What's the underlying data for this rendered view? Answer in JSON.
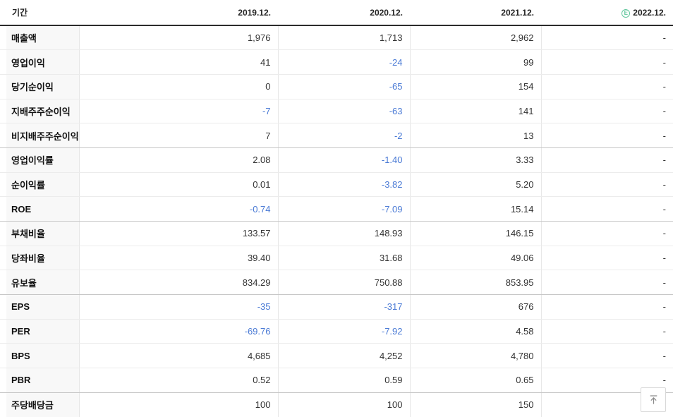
{
  "table": {
    "period_label": "기간",
    "columns": [
      "2019.12.",
      "2020.12.",
      "2021.12.",
      "2022.12."
    ],
    "estimate_badge": "E",
    "rows": [
      {
        "label": "매출액",
        "group_end": false,
        "cells": [
          {
            "t": "1,976",
            "neg": false
          },
          {
            "t": "1,713",
            "neg": false
          },
          {
            "t": "2,962",
            "neg": false
          },
          {
            "t": "-",
            "neg": false
          }
        ]
      },
      {
        "label": "영업이익",
        "group_end": false,
        "cells": [
          {
            "t": "41",
            "neg": false
          },
          {
            "t": "-24",
            "neg": true
          },
          {
            "t": "99",
            "neg": false
          },
          {
            "t": "-",
            "neg": false
          }
        ]
      },
      {
        "label": "당기순이익",
        "group_end": false,
        "cells": [
          {
            "t": "0",
            "neg": false
          },
          {
            "t": "-65",
            "neg": true
          },
          {
            "t": "154",
            "neg": false
          },
          {
            "t": "-",
            "neg": false
          }
        ]
      },
      {
        "label": "지배주주순이익",
        "group_end": false,
        "cells": [
          {
            "t": "-7",
            "neg": true
          },
          {
            "t": "-63",
            "neg": true
          },
          {
            "t": "141",
            "neg": false
          },
          {
            "t": "-",
            "neg": false
          }
        ]
      },
      {
        "label": "비지배주주순이익",
        "group_end": true,
        "cells": [
          {
            "t": "7",
            "neg": false
          },
          {
            "t": "-2",
            "neg": true
          },
          {
            "t": "13",
            "neg": false
          },
          {
            "t": "-",
            "neg": false
          }
        ]
      },
      {
        "label": "영업이익률",
        "group_end": false,
        "cells": [
          {
            "t": "2.08",
            "neg": false
          },
          {
            "t": "-1.40",
            "neg": true
          },
          {
            "t": "3.33",
            "neg": false
          },
          {
            "t": "-",
            "neg": false
          }
        ]
      },
      {
        "label": "순이익률",
        "group_end": false,
        "cells": [
          {
            "t": "0.01",
            "neg": false
          },
          {
            "t": "-3.82",
            "neg": true
          },
          {
            "t": "5.20",
            "neg": false
          },
          {
            "t": "-",
            "neg": false
          }
        ]
      },
      {
        "label": "ROE",
        "group_end": true,
        "cells": [
          {
            "t": "-0.74",
            "neg": true
          },
          {
            "t": "-7.09",
            "neg": true
          },
          {
            "t": "15.14",
            "neg": false
          },
          {
            "t": "-",
            "neg": false
          }
        ]
      },
      {
        "label": "부채비율",
        "group_end": false,
        "cells": [
          {
            "t": "133.57",
            "neg": false
          },
          {
            "t": "148.93",
            "neg": false
          },
          {
            "t": "146.15",
            "neg": false
          },
          {
            "t": "-",
            "neg": false
          }
        ]
      },
      {
        "label": "당좌비율",
        "group_end": false,
        "cells": [
          {
            "t": "39.40",
            "neg": false
          },
          {
            "t": "31.68",
            "neg": false
          },
          {
            "t": "49.06",
            "neg": false
          },
          {
            "t": "-",
            "neg": false
          }
        ]
      },
      {
        "label": "유보율",
        "group_end": true,
        "cells": [
          {
            "t": "834.29",
            "neg": false
          },
          {
            "t": "750.88",
            "neg": false
          },
          {
            "t": "853.95",
            "neg": false
          },
          {
            "t": "-",
            "neg": false
          }
        ]
      },
      {
        "label": "EPS",
        "group_end": false,
        "cells": [
          {
            "t": "-35",
            "neg": true
          },
          {
            "t": "-317",
            "neg": true
          },
          {
            "t": "676",
            "neg": false
          },
          {
            "t": "-",
            "neg": false
          }
        ]
      },
      {
        "label": "PER",
        "group_end": false,
        "cells": [
          {
            "t": "-69.76",
            "neg": true
          },
          {
            "t": "-7.92",
            "neg": true
          },
          {
            "t": "4.58",
            "neg": false
          },
          {
            "t": "-",
            "neg": false
          }
        ]
      },
      {
        "label": "BPS",
        "group_end": false,
        "cells": [
          {
            "t": "4,685",
            "neg": false
          },
          {
            "t": "4,252",
            "neg": false
          },
          {
            "t": "4,780",
            "neg": false
          },
          {
            "t": "-",
            "neg": false
          }
        ]
      },
      {
        "label": "PBR",
        "group_end": true,
        "cells": [
          {
            "t": "0.52",
            "neg": false
          },
          {
            "t": "0.59",
            "neg": false
          },
          {
            "t": "0.65",
            "neg": false
          },
          {
            "t": "-",
            "neg": false
          }
        ]
      },
      {
        "label": "주당배당금",
        "group_end": false,
        "cells": [
          {
            "t": "100",
            "neg": false
          },
          {
            "t": "100",
            "neg": false
          },
          {
            "t": "150",
            "neg": false
          },
          {
            "t": "-",
            "neg": false
          }
        ]
      }
    ]
  },
  "colors": {
    "negative_value": "#4a7ad5",
    "estimate_green": "#5fc69c",
    "header_border": "#2b2b2b",
    "group_separator": "#c6c6c6",
    "row_separator": "#ececec",
    "label_background": "#f8f8f8"
  }
}
